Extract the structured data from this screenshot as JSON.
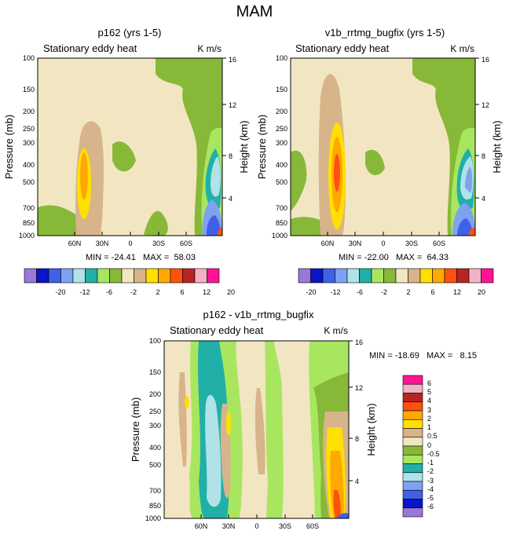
{
  "page": {
    "title": "MAM"
  },
  "chart_data": [
    {
      "type": "heatmap",
      "title": "p162 (yrs 1-5)",
      "subtitle": "Stationary eddy heat",
      "units": "K m/s",
      "ylabel": "Pressure (mb)",
      "y2label": "Height (km)",
      "xticks": [
        "60N",
        "30N",
        "0",
        "30S",
        "60S"
      ],
      "yticks": [
        "100",
        "150",
        "200",
        "250",
        "300",
        "400",
        "500",
        "700",
        "850",
        "1000"
      ],
      "y2ticks": [
        "16",
        "12",
        "8",
        "4"
      ],
      "stats": "MIN = -24.41   MAX =  58.03",
      "min": -24.41,
      "max": 58.03,
      "colorbar_labels": [
        "-20",
        "-12",
        "-6",
        "-2",
        "2",
        "6",
        "12",
        "20"
      ]
    },
    {
      "type": "heatmap",
      "title": "v1b_rrtmg_bugfix (yrs 1-5)",
      "subtitle": "Stationary eddy heat",
      "units": "K m/s",
      "ylabel": "Pressure (mb)",
      "y2label": "Height (km)",
      "xticks": [
        "60N",
        "30N",
        "0",
        "30S",
        "60S"
      ],
      "yticks": [
        "100",
        "150",
        "200",
        "250",
        "300",
        "400",
        "500",
        "700",
        "850",
        "1000"
      ],
      "y2ticks": [
        "16",
        "12",
        "8",
        "4"
      ],
      "stats": "MIN = -22.00   MAX =  64.33",
      "min": -22.0,
      "max": 64.33,
      "colorbar_labels": [
        "-20",
        "-12",
        "-6",
        "-2",
        "2",
        "6",
        "12",
        "20"
      ]
    },
    {
      "type": "heatmap",
      "title": "p162 - v1b_rrtmg_bugfix",
      "subtitle": "Stationary eddy heat",
      "units": "K m/s",
      "ylabel": "Pressure (mb)",
      "y2label": "Height (km)",
      "xticks": [
        "60N",
        "30N",
        "0",
        "30S",
        "60S"
      ],
      "yticks": [
        "100",
        "150",
        "200",
        "250",
        "300",
        "400",
        "500",
        "700",
        "850",
        "1000"
      ],
      "y2ticks": [
        "16",
        "12",
        "8",
        "4"
      ],
      "stats": "MIN = -18.69   MAX =   8.15",
      "min": -18.69,
      "max": 8.15,
      "colorbar_labels": [
        "6",
        "5",
        "4",
        "3",
        "2",
        "1",
        "0.5",
        "0",
        "-0.5",
        "-1",
        "-2",
        "-3",
        "-4",
        "-5",
        "-6"
      ]
    }
  ],
  "colors": {
    "panel_colorbar": [
      "#9b77d9",
      "#0a14c8",
      "#4060e8",
      "#7fa2f0",
      "#b0e2e8",
      "#20b0a8",
      "#a8e660",
      "#88b838",
      "#f2e6c2",
      "#d8b48a",
      "#ffe000",
      "#ffa800",
      "#ff5010",
      "#b82424",
      "#f4b0c4",
      "#ff1493"
    ],
    "diff_colorbar": [
      "#ff1493",
      "#f4b0c4",
      "#b82424",
      "#ff5010",
      "#ffa800",
      "#ffe000",
      "#d8b48a",
      "#f2e6c2",
      "#88b838",
      "#a8e660",
      "#20b0a8",
      "#b0e2e8",
      "#7fa2f0",
      "#4060e8",
      "#0a14c8",
      "#9b77d9"
    ]
  }
}
